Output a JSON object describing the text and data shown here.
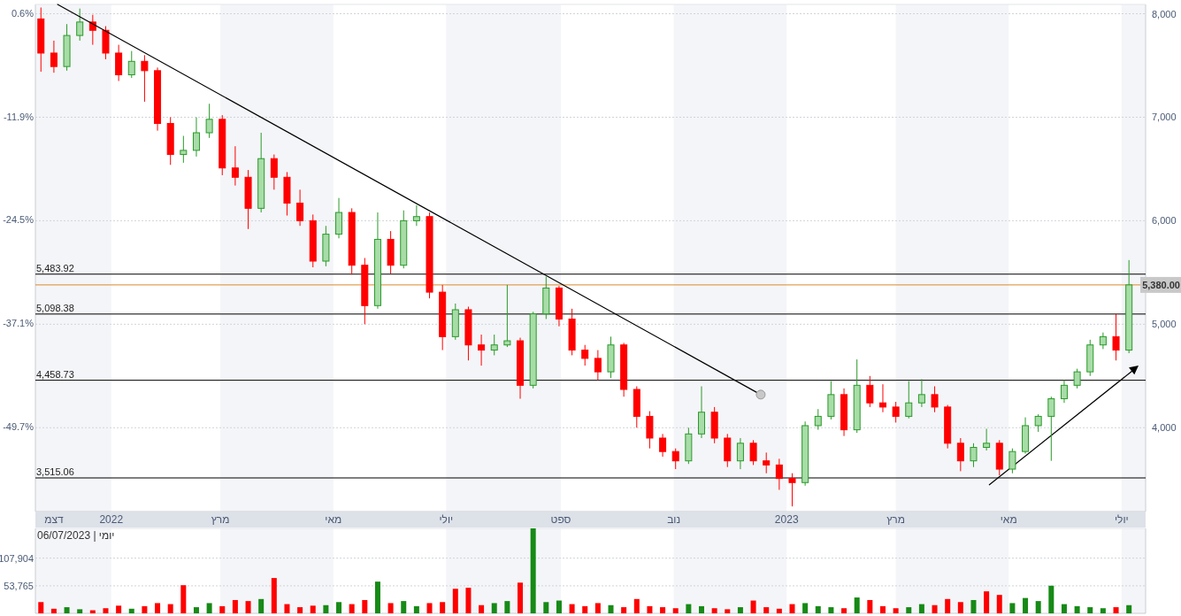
{
  "chart_data": [
    {
      "type": "candlestick",
      "x": [
        "2021-11-24",
        "2021-12-01",
        "2021-12-08",
        "2021-12-15",
        "2021-12-22",
        "2021-12-29",
        "2022-01-05",
        "2022-01-12",
        "2022-01-19",
        "2022-01-26",
        "2022-02-02",
        "2022-02-09",
        "2022-02-16",
        "2022-02-23",
        "2022-03-02",
        "2022-03-09",
        "2022-03-16",
        "2022-03-23",
        "2022-03-30",
        "2022-04-06",
        "2022-04-13",
        "2022-04-20",
        "2022-04-27",
        "2022-05-04",
        "2022-05-11",
        "2022-05-18",
        "2022-05-25",
        "2022-06-01",
        "2022-06-08",
        "2022-06-15",
        "2022-06-22",
        "2022-06-29",
        "2022-07-06",
        "2022-07-13",
        "2022-07-20",
        "2022-07-27",
        "2022-08-03",
        "2022-08-10",
        "2022-08-17",
        "2022-08-24",
        "2022-08-31",
        "2022-09-07",
        "2022-09-14",
        "2022-09-21",
        "2022-09-28",
        "2022-10-05",
        "2022-10-12",
        "2022-10-19",
        "2022-10-26",
        "2022-11-02",
        "2022-11-09",
        "2022-11-16",
        "2022-11-23",
        "2022-11-30",
        "2022-12-07",
        "2022-12-14",
        "2022-12-21",
        "2022-12-28",
        "2023-01-04",
        "2023-01-11",
        "2023-01-18",
        "2023-01-25",
        "2023-02-01",
        "2023-02-08",
        "2023-02-15",
        "2023-02-22",
        "2023-03-01",
        "2023-03-08",
        "2023-03-15",
        "2023-03-22",
        "2023-03-29",
        "2023-04-05",
        "2023-04-12",
        "2023-04-19",
        "2023-04-26",
        "2023-05-03",
        "2023-05-10",
        "2023-05-17",
        "2023-05-24",
        "2023-05-31",
        "2023-06-07",
        "2023-06-14",
        "2023-06-21",
        "2023-06-28",
        "2023-07-05"
      ],
      "ohlc": [
        [
          7950,
          8060,
          7440,
          7620
        ],
        [
          7620,
          7740,
          7430,
          7490
        ],
        [
          7490,
          7900,
          7450,
          7790
        ],
        [
          7790,
          8050,
          7740,
          7920
        ],
        [
          7920,
          7990,
          7700,
          7840
        ],
        [
          7840,
          7880,
          7560,
          7620
        ],
        [
          7620,
          7700,
          7350,
          7410
        ],
        [
          7410,
          7640,
          7380,
          7540
        ],
        [
          7540,
          7600,
          7150,
          7450
        ],
        [
          7450,
          7480,
          6870,
          6940
        ],
        [
          6940,
          7000,
          6540,
          6640
        ],
        [
          6640,
          6820,
          6560,
          6680
        ],
        [
          6680,
          7000,
          6620,
          6850
        ],
        [
          6850,
          7130,
          6800,
          6980
        ],
        [
          6980,
          7020,
          6440,
          6510
        ],
        [
          6510,
          6720,
          6340,
          6420
        ],
        [
          6420,
          6490,
          5920,
          6120
        ],
        [
          6120,
          6850,
          6080,
          6600
        ],
        [
          6600,
          6640,
          6300,
          6420
        ],
        [
          6420,
          6470,
          6050,
          6170
        ],
        [
          6170,
          6300,
          5950,
          6000
        ],
        [
          6000,
          6060,
          5550,
          5610
        ],
        [
          5610,
          5950,
          5560,
          5870
        ],
        [
          5870,
          6220,
          5830,
          6080
        ],
        [
          6080,
          6120,
          5480,
          5570
        ],
        [
          5570,
          5640,
          5000,
          5180
        ],
        [
          5180,
          6080,
          5150,
          5820
        ],
        [
          5820,
          5900,
          5490,
          5570
        ],
        [
          5570,
          6100,
          5540,
          6000
        ],
        [
          6000,
          6150,
          5950,
          6040
        ],
        [
          6040,
          6080,
          5250,
          5310
        ],
        [
          5310,
          5380,
          4750,
          4880
        ],
        [
          4880,
          5200,
          4850,
          5140
        ],
        [
          5140,
          5170,
          4650,
          4800
        ],
        [
          4800,
          4900,
          4600,
          4750
        ],
        [
          4750,
          4900,
          4700,
          4800
        ],
        [
          4800,
          5380,
          4780,
          4840
        ],
        [
          4840,
          4870,
          4280,
          4410
        ],
        [
          4410,
          5120,
          4380,
          5100
        ],
        [
          5100,
          5460,
          5050,
          5350
        ],
        [
          5350,
          5370,
          4980,
          5050
        ],
        [
          5050,
          5150,
          4700,
          4750
        ],
        [
          4750,
          4800,
          4600,
          4670
        ],
        [
          4670,
          4750,
          4460,
          4540
        ],
        [
          4540,
          4880,
          4480,
          4800
        ],
        [
          4800,
          4820,
          4300,
          4370
        ],
        [
          4370,
          4400,
          4000,
          4110
        ],
        [
          4110,
          4160,
          3800,
          3900
        ],
        [
          3900,
          3940,
          3720,
          3770
        ],
        [
          3770,
          3800,
          3600,
          3680
        ],
        [
          3680,
          4000,
          3650,
          3940
        ],
        [
          3940,
          4400,
          3900,
          4150
        ],
        [
          4150,
          4200,
          3850,
          3900
        ],
        [
          3900,
          3940,
          3620,
          3680
        ],
        [
          3680,
          3900,
          3600,
          3850
        ],
        [
          3850,
          3880,
          3640,
          3680
        ],
        [
          3680,
          3760,
          3560,
          3640
        ],
        [
          3640,
          3700,
          3400,
          3510
        ],
        [
          3510,
          3560,
          3240,
          3470
        ],
        [
          3470,
          4060,
          3440,
          4020
        ],
        [
          4020,
          4180,
          3980,
          4110
        ],
        [
          4110,
          4450,
          4080,
          4320
        ],
        [
          4320,
          4380,
          3920,
          3980
        ],
        [
          3980,
          4660,
          3950,
          4410
        ],
        [
          4410,
          4500,
          4200,
          4240
        ],
        [
          4240,
          4420,
          4150,
          4200
        ],
        [
          4200,
          4250,
          4050,
          4110
        ],
        [
          4110,
          4450,
          4090,
          4240
        ],
        [
          4240,
          4470,
          4200,
          4320
        ],
        [
          4320,
          4400,
          4150,
          4200
        ],
        [
          4200,
          4220,
          3800,
          3850
        ],
        [
          3850,
          3900,
          3580,
          3680
        ],
        [
          3680,
          3850,
          3620,
          3810
        ],
        [
          3810,
          3990,
          3780,
          3850
        ],
        [
          3850,
          3880,
          3540,
          3600
        ],
        [
          3600,
          3800,
          3560,
          3770
        ],
        [
          3770,
          4100,
          3750,
          4020
        ],
        [
          4020,
          4130,
          3960,
          4110
        ],
        [
          4110,
          4300,
          3680,
          4280
        ],
        [
          4280,
          4460,
          4240,
          4410
        ],
        [
          4410,
          4570,
          4380,
          4540
        ],
        [
          4540,
          4850,
          4500,
          4800
        ],
        [
          4800,
          4920,
          4760,
          4880
        ],
        [
          4880,
          5100,
          4650,
          4750
        ],
        [
          4750,
          5620,
          4720,
          5380
        ]
      ],
      "colors": [
        "#ff0000",
        "#ff0000",
        "#2a9a2a",
        "#2a9a2a",
        "#ff0000",
        "#ff0000",
        "#ff0000",
        "#2a9a2a",
        "#ff0000",
        "#ff0000",
        "#ff0000",
        "#2a9a2a",
        "#2a9a2a",
        "#2a9a2a",
        "#ff0000",
        "#ff0000",
        "#ff0000",
        "#2a9a2a",
        "#ff0000",
        "#ff0000",
        "#ff0000",
        "#ff0000",
        "#2a9a2a",
        "#2a9a2a",
        "#ff0000",
        "#ff0000",
        "#2a9a2a",
        "#ff0000",
        "#2a9a2a",
        "#2a9a2a",
        "#ff0000",
        "#ff0000",
        "#2a9a2a",
        "#ff0000",
        "#ff0000",
        "#2a9a2a",
        "#2a9a2a",
        "#ff0000",
        "#2a9a2a",
        "#2a9a2a",
        "#ff0000",
        "#ff0000",
        "#ff0000",
        "#ff0000",
        "#2a9a2a",
        "#ff0000",
        "#ff0000",
        "#ff0000",
        "#ff0000",
        "#ff0000",
        "#2a9a2a",
        "#2a9a2a",
        "#ff0000",
        "#ff0000",
        "#2a9a2a",
        "#ff0000",
        "#ff0000",
        "#ff0000",
        "#ff0000",
        "#2a9a2a",
        "#2a9a2a",
        "#2a9a2a",
        "#ff0000",
        "#2a9a2a",
        "#ff0000",
        "#ff0000",
        "#ff0000",
        "#2a9a2a",
        "#2a9a2a",
        "#ff0000",
        "#ff0000",
        "#ff0000",
        "#2a9a2a",
        "#2a9a2a",
        "#ff0000",
        "#2a9a2a",
        "#2a9a2a",
        "#2a9a2a",
        "#2a9a2a",
        "#2a9a2a",
        "#2a9a2a",
        "#2a9a2a",
        "#2a9a2a",
        "#ff0000",
        "#2a9a2a"
      ],
      "series": [
        {
          "type": "line",
          "color": "#000000",
          "x": [
            "2021-12-03",
            "2022-12-18"
          ],
          "values": [
            8090,
            4320
          ]
        }
      ],
      "xlim": [
        "2021-11-21",
        "2023-07-14"
      ],
      "xticks": [
        {
          "value": "2021-12-01",
          "label": "דצמ"
        },
        {
          "value": "2022-01-01",
          "label": "2022"
        },
        {
          "value": "2022-03-01",
          "label": "מרץ"
        },
        {
          "value": "2022-05-01",
          "label": "מאי"
        },
        {
          "value": "2022-07-01",
          "label": "יולי"
        },
        {
          "value": "2022-09-01",
          "label": "ספט"
        },
        {
          "value": "2022-11-01",
          "label": "נוב"
        },
        {
          "value": "2023-01-01",
          "label": "2023"
        },
        {
          "value": "2023-03-01",
          "label": "מרץ"
        },
        {
          "value": "2023-05-01",
          "label": "מאי"
        },
        {
          "value": "2023-07-01",
          "label": "יולי"
        }
      ],
      "ylim": [
        3190,
        8090
      ],
      "yticks": [
        {
          "value": 4000,
          "label": "4,000"
        },
        {
          "value": 5000,
          "label": "5,000"
        },
        {
          "value": 6000,
          "label": "6,000"
        },
        {
          "value": 7000,
          "label": "7,000"
        },
        {
          "value": 8000,
          "label": "8,000"
        }
      ],
      "y2lim": [
        -60.0,
        1.73
      ],
      "y2ticks": [
        {
          "value": -49.7,
          "label": "-49.7%"
        },
        {
          "value": -37.1,
          "label": "-37.1%"
        },
        {
          "value": -24.5,
          "label": "-24.5%"
        },
        {
          "value": -11.9,
          "label": "-11.9%"
        },
        {
          "value": 0.6,
          "label": "0.6%"
        }
      ],
      "grid": "y",
      "ref_lines": [
        {
          "axis": "y",
          "value": 5483.92,
          "label": "5,483.92",
          "color": "#000000"
        },
        {
          "axis": "y",
          "value": 5098.38,
          "label": "5,098.38",
          "color": "#000000"
        },
        {
          "axis": "y",
          "value": 4458.73,
          "label": "4,458.73",
          "color": "#000000"
        },
        {
          "axis": "y",
          "value": 3515.06,
          "label": "3,515.06",
          "color": "#000000"
        },
        {
          "axis": "y",
          "value": 5380,
          "label": "5,380.00",
          "color": "#d98a2c"
        }
      ],
      "bands": [
        {
          "axis": "x",
          "from": "2021-11-21",
          "to": "2022-01-01",
          "color": "#f4f5f8"
        },
        {
          "axis": "x",
          "from": "2022-03-01",
          "to": "2022-05-01",
          "color": "#f4f5f8"
        },
        {
          "axis": "x",
          "from": "2022-07-01",
          "to": "2022-09-01",
          "color": "#f4f5f8"
        },
        {
          "axis": "x",
          "from": "2022-11-01",
          "to": "2023-01-01",
          "color": "#f4f5f8"
        },
        {
          "axis": "x",
          "from": "2023-03-01",
          "to": "2023-05-01",
          "color": "#f4f5f8"
        },
        {
          "axis": "x",
          "from": "2023-07-01",
          "to": "2023-07-14",
          "color": "#f4f5f8"
        }
      ]
    },
    {
      "type": "bar",
      "x": [
        "2021-11-24",
        "2021-12-01",
        "2021-12-08",
        "2021-12-15",
        "2021-12-22",
        "2021-12-29",
        "2022-01-05",
        "2022-01-12",
        "2022-01-19",
        "2022-01-26",
        "2022-02-02",
        "2022-02-09",
        "2022-02-16",
        "2022-02-23",
        "2022-03-02",
        "2022-03-09",
        "2022-03-16",
        "2022-03-23",
        "2022-03-30",
        "2022-04-06",
        "2022-04-13",
        "2022-04-20",
        "2022-04-27",
        "2022-05-04",
        "2022-05-11",
        "2022-05-18",
        "2022-05-25",
        "2022-06-01",
        "2022-06-08",
        "2022-06-15",
        "2022-06-22",
        "2022-06-29",
        "2022-07-06",
        "2022-07-13",
        "2022-07-20",
        "2022-07-27",
        "2022-08-03",
        "2022-08-10",
        "2022-08-17",
        "2022-08-24",
        "2022-08-31",
        "2022-09-07",
        "2022-09-14",
        "2022-09-21",
        "2022-09-28",
        "2022-10-05",
        "2022-10-12",
        "2022-10-19",
        "2022-10-26",
        "2022-11-02",
        "2022-11-09",
        "2022-11-16",
        "2022-11-23",
        "2022-11-30",
        "2022-12-07",
        "2022-12-14",
        "2022-12-21",
        "2022-12-28",
        "2023-01-04",
        "2023-01-11",
        "2023-01-18",
        "2023-01-25",
        "2023-02-01",
        "2023-02-08",
        "2023-02-15",
        "2023-02-22",
        "2023-03-01",
        "2023-03-08",
        "2023-03-15",
        "2023-03-22",
        "2023-03-29",
        "2023-04-05",
        "2023-04-12",
        "2023-04-19",
        "2023-04-26",
        "2023-05-03",
        "2023-05-10",
        "2023-05-17",
        "2023-05-24",
        "2023-05-31",
        "2023-06-07",
        "2023-06-14",
        "2023-06-21",
        "2023-06-28",
        "2023-07-05"
      ],
      "values": [
        22000,
        9000,
        12000,
        8000,
        6000,
        10000,
        15000,
        9000,
        14000,
        20000,
        18000,
        55000,
        12000,
        20000,
        14000,
        26000,
        24000,
        28000,
        69000,
        18000,
        12000,
        15000,
        16000,
        22000,
        18000,
        26000,
        62000,
        20000,
        24000,
        14000,
        20000,
        22000,
        48000,
        50000,
        16000,
        20000,
        24000,
        60000,
        166000,
        22000,
        25000,
        18000,
        14000,
        20000,
        16000,
        12000,
        28000,
        14000,
        12000,
        10000,
        18000,
        14000,
        10000,
        8000,
        12000,
        25000,
        12000,
        9000,
        18000,
        20000,
        14000,
        12000,
        10000,
        31000,
        26000,
        14000,
        10000,
        12000,
        18000,
        16000,
        28000,
        22000,
        26000,
        43000,
        36000,
        20000,
        30000,
        24000,
        54000,
        18000,
        14000,
        12000,
        10000,
        12000,
        16000
      ],
      "colors": [
        "#ff0000",
        "#ff0000",
        "#168a16",
        "#168a16",
        "#ff0000",
        "#ff0000",
        "#ff0000",
        "#168a16",
        "#ff0000",
        "#ff0000",
        "#ff0000",
        "#ff0000",
        "#168a16",
        "#168a16",
        "#ff0000",
        "#ff0000",
        "#ff0000",
        "#168a16",
        "#ff0000",
        "#ff0000",
        "#ff0000",
        "#ff0000",
        "#168a16",
        "#168a16",
        "#ff0000",
        "#ff0000",
        "#168a16",
        "#ff0000",
        "#168a16",
        "#168a16",
        "#ff0000",
        "#ff0000",
        "#ff0000",
        "#ff0000",
        "#ff0000",
        "#168a16",
        "#168a16",
        "#ff0000",
        "#168a16",
        "#168a16",
        "#168a16",
        "#ff0000",
        "#ff0000",
        "#ff0000",
        "#168a16",
        "#ff0000",
        "#ff0000",
        "#ff0000",
        "#ff0000",
        "#ff0000",
        "#168a16",
        "#168a16",
        "#ff0000",
        "#ff0000",
        "#168a16",
        "#ff0000",
        "#ff0000",
        "#ff0000",
        "#ff0000",
        "#168a16",
        "#168a16",
        "#168a16",
        "#ff0000",
        "#168a16",
        "#ff0000",
        "#ff0000",
        "#ff0000",
        "#168a16",
        "#168a16",
        "#ff0000",
        "#ff0000",
        "#ff0000",
        "#168a16",
        "#ff0000",
        "#ff0000",
        "#168a16",
        "#168a16",
        "#168a16",
        "#168a16",
        "#168a16",
        "#168a16",
        "#168a16",
        "#168a16",
        "#ff0000",
        "#168a16"
      ],
      "xlim": [
        "2021-11-21",
        "2023-07-14"
      ],
      "ylim": [
        0,
        166000
      ],
      "yticks": [
        {
          "value": 53765,
          "label": "53,765"
        },
        {
          "value": 107904,
          "label": "107,904"
        }
      ],
      "tick_labels": "y",
      "grid": "y",
      "annotations": [
        "יומי | 06/07/2023"
      ],
      "bands": [
        {
          "axis": "x",
          "from": "2021-11-21",
          "to": "2022-01-01",
          "color": "#f4f5f8"
        },
        {
          "axis": "x",
          "from": "2022-03-01",
          "to": "2022-05-01",
          "color": "#f4f5f8"
        },
        {
          "axis": "x",
          "from": "2022-07-01",
          "to": "2022-09-01",
          "color": "#f4f5f8"
        },
        {
          "axis": "x",
          "from": "2022-11-01",
          "to": "2023-01-01",
          "color": "#f4f5f8"
        },
        {
          "axis": "x",
          "from": "2023-03-01",
          "to": "2023-05-01",
          "color": "#f4f5f8"
        },
        {
          "axis": "x",
          "from": "2023-07-01",
          "to": "2023-07-14",
          "color": "#f4f5f8"
        }
      ]
    }
  ]
}
